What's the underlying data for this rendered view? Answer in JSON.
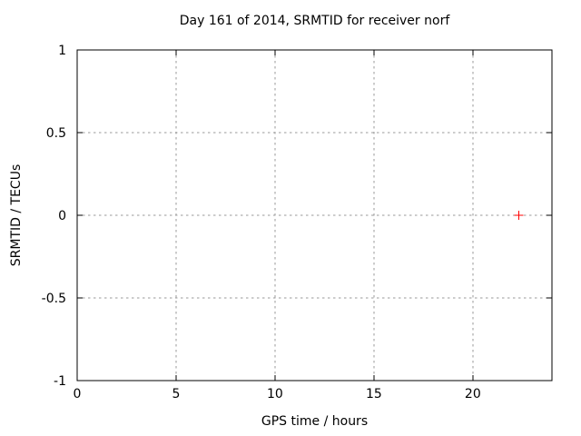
{
  "chart_data": {
    "type": "scatter",
    "title": "Day 161 of 2014, SRMTID for receiver norf",
    "xlabel": "GPS time / hours",
    "ylabel": "SRMTID / TECUs",
    "xlim": [
      0,
      24
    ],
    "ylim": [
      -1,
      1
    ],
    "xticks": [
      0,
      5,
      10,
      15,
      20
    ],
    "xtick_labels": [
      "0",
      "5",
      "10",
      "15",
      "20"
    ],
    "yticks": [
      -1,
      -0.5,
      0,
      0.5,
      1
    ],
    "ytick_labels": [
      "-1",
      "-0.5",
      "0",
      "0.5",
      "1"
    ],
    "grid": true,
    "legend": false,
    "series": [
      {
        "marker": "plus",
        "color": "#ff0000",
        "points": [
          [
            22.33,
            0
          ]
        ]
      }
    ],
    "colors": {
      "background": "#ffffff",
      "axis": "#000000",
      "grid": "#9a9a9a",
      "text": "#000000"
    }
  }
}
